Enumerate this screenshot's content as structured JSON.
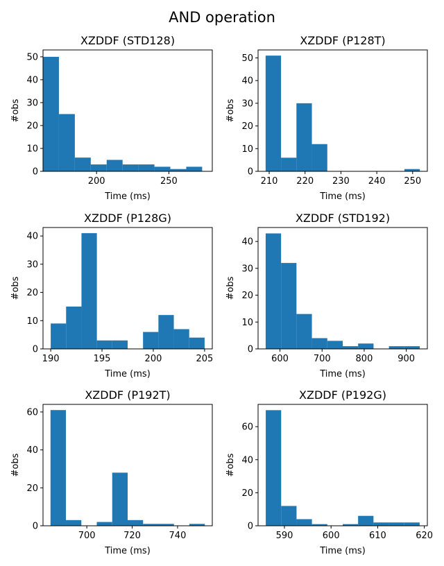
{
  "figure": {
    "title": "AND operation",
    "bar_color": "#1f77b4"
  },
  "chart_data": [
    {
      "type": "bar",
      "title": "XZDDF (STD128)",
      "xlabel": "Time (ms)",
      "ylabel": "#obs",
      "xlim": [
        163,
        280
      ],
      "ylim": [
        0,
        53
      ],
      "xticks": [
        200,
        250
      ],
      "yticks": [
        0,
        10,
        20,
        30,
        40,
        50
      ],
      "bin_edges": [
        163,
        174,
        185,
        196,
        207,
        218,
        229,
        240,
        251,
        262,
        273
      ],
      "counts": [
        50,
        25,
        6,
        3,
        5,
        3,
        3,
        2,
        1,
        2
      ]
    },
    {
      "type": "bar",
      "title": "XZDDF (P128T)",
      "xlabel": "Time (ms)",
      "ylabel": "#obs",
      "xlim": [
        206.9,
        254.1
      ],
      "ylim": [
        0,
        53.5
      ],
      "xticks": [
        210,
        220,
        230,
        240,
        250
      ],
      "yticks": [
        0,
        10,
        20,
        30,
        40,
        50
      ],
      "bin_edges": [
        209,
        213.3,
        217.6,
        221.9,
        226.2,
        230.5,
        234.8,
        239.1,
        243.4,
        247.7,
        252
      ],
      "counts": [
        51,
        6,
        30,
        12,
        0,
        0,
        0,
        0,
        0,
        1
      ]
    },
    {
      "type": "bar",
      "title": "XZDDF (P128G)",
      "xlabel": "Time (ms)",
      "ylabel": "#obs",
      "xlim": [
        189.25,
        205.75
      ],
      "ylim": [
        0,
        43
      ],
      "xticks": [
        190,
        195,
        200,
        205
      ],
      "yticks": [
        0,
        10,
        20,
        30,
        40
      ],
      "bin_edges": [
        190,
        191.5,
        193,
        194.5,
        196,
        197.5,
        199,
        200.5,
        202,
        203.5,
        205
      ],
      "counts": [
        9,
        15,
        41,
        3,
        3,
        0,
        6,
        12,
        7,
        4
      ]
    },
    {
      "type": "bar",
      "title": "XZDDF (STD192)",
      "xlabel": "Time (ms)",
      "ylabel": "#obs",
      "xlim": [
        548,
        950
      ],
      "ylim": [
        0,
        45.2
      ],
      "xticks": [
        600,
        700,
        800,
        900
      ],
      "yticks": [
        0,
        10,
        20,
        30,
        40
      ],
      "bin_edges": [
        566,
        602.6,
        639.2,
        675.8,
        712.4,
        749,
        785.6,
        822.2,
        858.8,
        895.4,
        932
      ],
      "counts": [
        43,
        32,
        13,
        4,
        3,
        1,
        2,
        0,
        1,
        1
      ]
    },
    {
      "type": "bar",
      "title": "XZDDF (P192T)",
      "xlabel": "Time (ms)",
      "ylabel": "#obs",
      "xlim": [
        680.7,
        755.3
      ],
      "ylim": [
        0,
        64
      ],
      "xticks": [
        700,
        720,
        740
      ],
      "yticks": [
        0,
        20,
        40,
        60
      ],
      "bin_edges": [
        684,
        690.8,
        697.6,
        704.4,
        711.2,
        718,
        724.8,
        731.6,
        738.4,
        745.2,
        752
      ],
      "counts": [
        61,
        3,
        0,
        2,
        28,
        3,
        1,
        1,
        0,
        1
      ]
    },
    {
      "type": "bar",
      "title": "XZDDF (P192G)",
      "xlabel": "Time (ms)",
      "ylabel": "#obs",
      "xlim": [
        584.35,
        620.65
      ],
      "ylim": [
        0,
        73.5
      ],
      "xticks": [
        590,
        600,
        610,
        620
      ],
      "yticks": [
        0,
        20,
        40,
        60
      ],
      "bin_edges": [
        586,
        589.3,
        592.6,
        595.9,
        599.2,
        602.5,
        605.8,
        609.1,
        612.4,
        615.7,
        619
      ],
      "counts": [
        70,
        12,
        4,
        1,
        0,
        1,
        6,
        2,
        2,
        2
      ]
    }
  ]
}
